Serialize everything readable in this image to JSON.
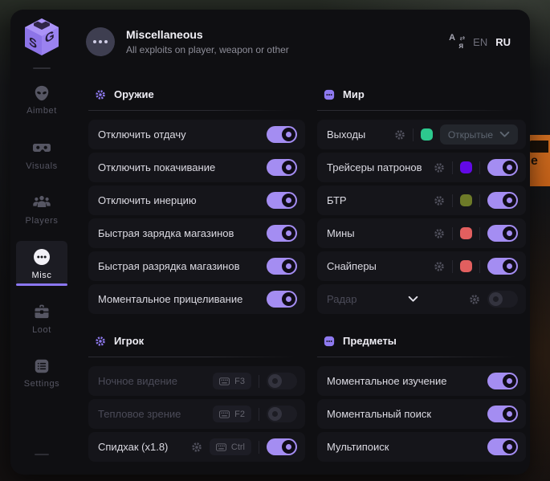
{
  "accent": "#a48df2",
  "background": {
    "sign_text": "e"
  },
  "header": {
    "title": "Miscellaneous",
    "subtitle": "All exploits on player, weapon or other",
    "lang_en": "EN",
    "lang_ru": "RU"
  },
  "sidebar": {
    "items": [
      {
        "label": "Aimbet",
        "icon": "alien-icon"
      },
      {
        "label": "Visuals",
        "icon": "vr-goggles-icon"
      },
      {
        "label": "Players",
        "icon": "group-icon"
      },
      {
        "label": "Misc",
        "icon": "ellipsis-circle-icon",
        "active": true
      },
      {
        "label": "Loot",
        "icon": "toolbox-icon"
      },
      {
        "label": "Settings",
        "icon": "list-icon"
      }
    ]
  },
  "columns": [
    [
      0,
      1
    ],
    [
      2,
      3
    ]
  ],
  "sections": [
    {
      "title": "Оружие",
      "icon": "gear",
      "rows": [
        {
          "label": "Отключить отдачу",
          "toggle": "on"
        },
        {
          "label": "Отключить покачивание",
          "toggle": "on"
        },
        {
          "label": "Отключить инерцию",
          "toggle": "on"
        },
        {
          "label": "Быстрая зарядка магазинов",
          "toggle": "on"
        },
        {
          "label": "Быстрая разрядка магазинов",
          "toggle": "on"
        },
        {
          "label": "Моментальное прицеливание",
          "toggle": "on"
        }
      ]
    },
    {
      "title": "Игрок",
      "icon": "gear",
      "rows": [
        {
          "label": "Ночное видение",
          "disabled": true,
          "keybind": "F3",
          "toggle": "off"
        },
        {
          "label": "Тепловое зрение",
          "disabled": true,
          "keybind": "F2",
          "toggle": "off"
        },
        {
          "label": "Спидхак (x1.8)",
          "gear": true,
          "keybind": "Ctrl",
          "toggle": "on"
        }
      ]
    },
    {
      "title": "Мир",
      "icon": "dots",
      "rows": [
        {
          "label": "Выходы",
          "gear": true,
          "swatch": "#2dc98e",
          "dropdown": "Открытые"
        },
        {
          "label": "Трейсеры патронов",
          "gear": true,
          "swatch": "#6209e6",
          "toggle": "on"
        },
        {
          "label": "БТР",
          "gear": true,
          "swatch": "#6d7a28",
          "toggle": "on"
        },
        {
          "label": "Мины",
          "gear": true,
          "swatch": "#e25f5f",
          "toggle": "on"
        },
        {
          "label": "Снайперы",
          "gear": true,
          "swatch": "#e25f5f",
          "toggle": "on"
        },
        {
          "label": "Радар",
          "disabled": true,
          "expander": true,
          "gear": true,
          "toggle": "off"
        }
      ]
    },
    {
      "title": "Предметы",
      "icon": "dots",
      "rows": [
        {
          "label": "Моментальное изучение",
          "toggle": "on"
        },
        {
          "label": "Моментальный поиск",
          "toggle": "on"
        },
        {
          "label": "Мультипоиск",
          "toggle": "on"
        }
      ]
    }
  ]
}
